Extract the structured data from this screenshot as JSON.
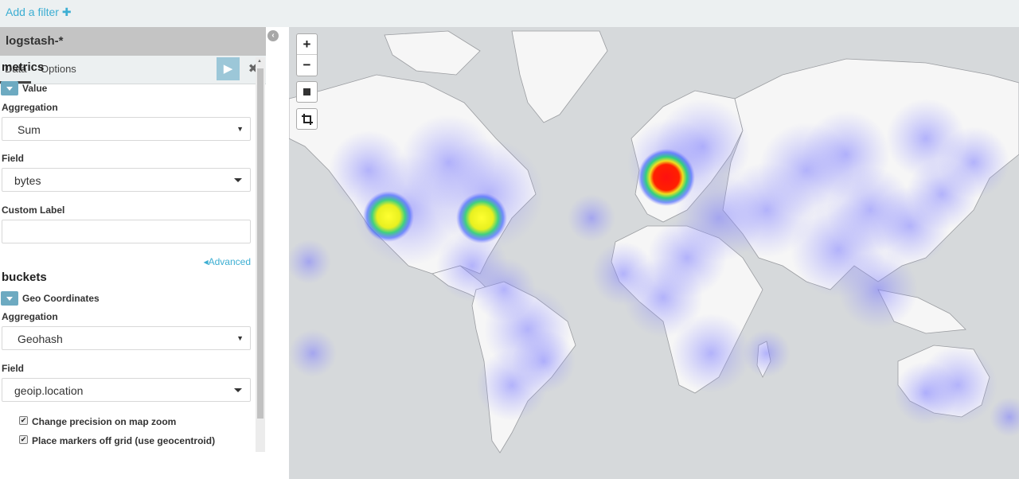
{
  "filter_bar": {
    "add_filter_label": "Add a filter",
    "add_filter_icon": "plus-icon"
  },
  "sidebar": {
    "index_pattern": "logstash-*",
    "tabs": [
      {
        "label": "Data",
        "active": true
      },
      {
        "label": "Options",
        "active": false
      }
    ],
    "apply_icon": "play-icon",
    "discard_icon": "close-icon",
    "metrics": {
      "heading": "metrics",
      "agg_title": "Value",
      "aggregation_label": "Aggregation",
      "aggregation_value": "Sum",
      "field_label": "Field",
      "field_value": "bytes",
      "custom_label_label": "Custom Label",
      "custom_label_value": "",
      "advanced_label": "Advanced"
    },
    "buckets": {
      "heading": "buckets",
      "agg_title": "Geo Coordinates",
      "aggregation_label": "Aggregation",
      "aggregation_value": "Geohash",
      "field_label": "Field",
      "field_value": "geoip.location",
      "options": [
        {
          "label": "Change precision on map zoom",
          "checked": true
        },
        {
          "label": "Place markers off grid (use geocentroid)",
          "checked": true
        }
      ]
    }
  },
  "map": {
    "zoom_in_label": "+",
    "zoom_out_label": "−",
    "controls": [
      "zoom-in",
      "zoom-out",
      "draw-rectangle",
      "fit-bounds"
    ],
    "colors": {
      "ocean": "#d6d9db",
      "land": "#f6f6f6",
      "low": "#7b7bff",
      "mid": "#ffff00",
      "high": "#ff0000"
    }
  }
}
